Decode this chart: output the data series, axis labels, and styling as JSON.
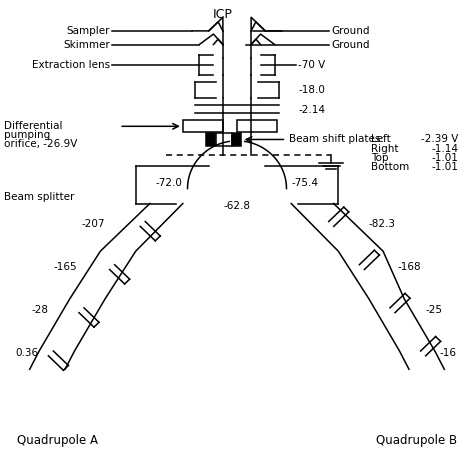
{
  "title": "ICP",
  "sampler": "Sampler",
  "skimmer": "Skimmer",
  "ground": "Ground",
  "extraction_lens": "Extraction lens",
  "extraction_v": "-70 V",
  "v1": "-18.0",
  "v2": "-2.14",
  "diff_pump_line1": "Differential",
  "diff_pump_line2": "pumping",
  "diff_pump_line3": "orifice, -26.9V",
  "beam_shift_label": "Beam shift plates:",
  "bs_left_label": "Left",
  "bs_right_label": "Right",
  "bs_top_label": "Top",
  "bs_bottom_label": "Bottom",
  "bs_left_v": "-2.39 V",
  "bs_right_v": "-1.14",
  "bs_top_v": "-1.01",
  "bs_bottom_v": "-1.01",
  "beam_splitter": "Beam splitter",
  "quad_a": "Quadrupole A",
  "quad_b": "Quadrupole B",
  "v_bs_left": "-72.0",
  "v_bs_right": "-75.4",
  "v_bs_center": "-62.8",
  "qa1": "-207",
  "qa2": "-165",
  "qa3": "-28",
  "qa4": "0.36",
  "qb1": "-82.3",
  "qb2": "-168",
  "qb3": "-25",
  "qb4": "-16",
  "line_color": "black",
  "bg_color": "white",
  "font_size": 7.5
}
